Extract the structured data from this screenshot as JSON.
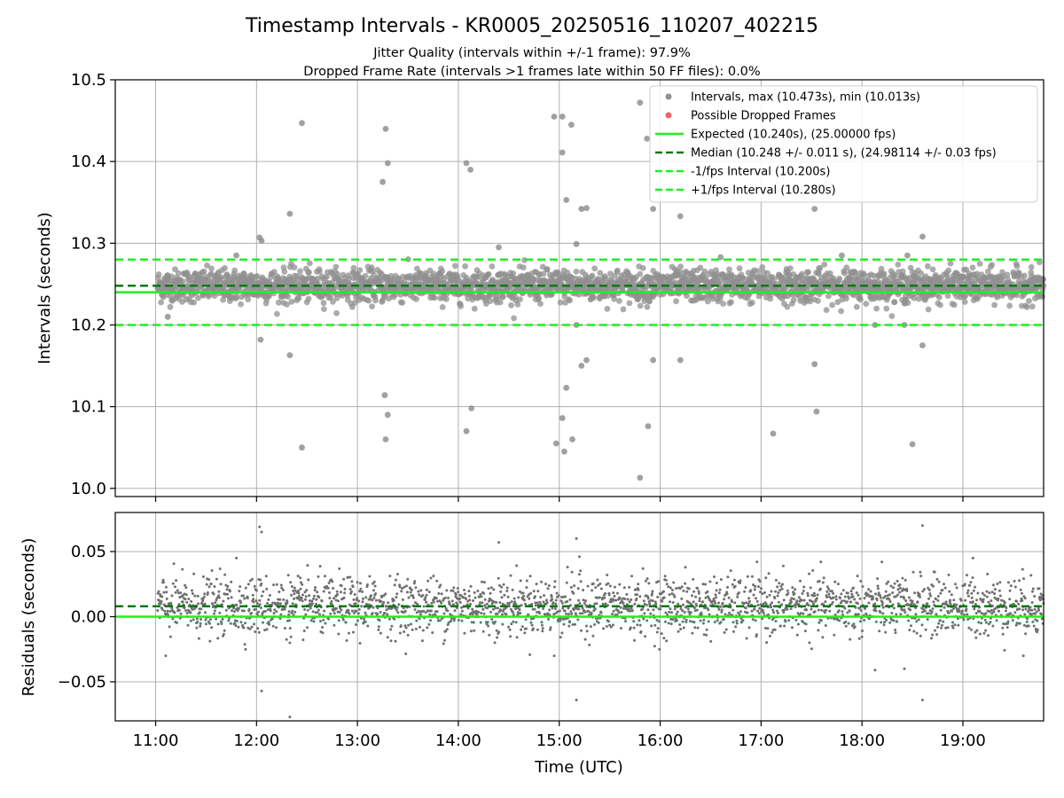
{
  "chart_data": [
    {
      "type": "scatter",
      "title": "Timestamp Intervals - KR0005_20250516_110207_402215",
      "subtitle_lines": [
        "Jitter Quality (intervals within +/-1 frame): 97.9%",
        "Dropped Frame Rate (intervals >1 frames late within 50 FF files): 0.0%"
      ],
      "ylabel": "Intervals (seconds)",
      "ylim": [
        9.99,
        10.5
      ],
      "yticks": [
        "10.0",
        "10.1",
        "10.2",
        "10.3",
        "10.4",
        "10.5"
      ],
      "ytick_values": [
        10.0,
        10.1,
        10.2,
        10.3,
        10.4,
        10.5
      ],
      "xlim_hours": [
        10.6,
        19.8
      ],
      "grid": true,
      "legend_position": "top-right",
      "series": [
        {
          "name": "Intervals, max (10.473s), min (10.013s)",
          "kind": "points",
          "color": "#909090",
          "band_center": 10.248,
          "band_spread": 0.011,
          "x_start_hour": 11.02,
          "x_end_hour": 19.8,
          "count": 2600,
          "outliers": [
            {
              "t": 12.03,
              "y": 10.307
            },
            {
              "t": 12.05,
              "y": 10.303
            },
            {
              "t": 12.04,
              "y": 10.182
            },
            {
              "t": 12.33,
              "y": 10.336
            },
            {
              "t": 12.33,
              "y": 10.163
            },
            {
              "t": 12.45,
              "y": 10.447
            },
            {
              "t": 12.45,
              "y": 10.05
            },
            {
              "t": 13.25,
              "y": 10.375
            },
            {
              "t": 13.28,
              "y": 10.44
            },
            {
              "t": 13.3,
              "y": 10.398
            },
            {
              "t": 13.27,
              "y": 10.114
            },
            {
              "t": 13.3,
              "y": 10.09
            },
            {
              "t": 13.28,
              "y": 10.06
            },
            {
              "t": 14.08,
              "y": 10.398
            },
            {
              "t": 14.12,
              "y": 10.39
            },
            {
              "t": 14.13,
              "y": 10.098
            },
            {
              "t": 14.08,
              "y": 10.07
            },
            {
              "t": 14.95,
              "y": 10.455
            },
            {
              "t": 15.03,
              "y": 10.455
            },
            {
              "t": 15.12,
              "y": 10.445
            },
            {
              "t": 15.03,
              "y": 10.411
            },
            {
              "t": 15.07,
              "y": 10.353
            },
            {
              "t": 15.22,
              "y": 10.342
            },
            {
              "t": 15.27,
              "y": 10.343
            },
            {
              "t": 15.17,
              "y": 10.299
            },
            {
              "t": 15.17,
              "y": 10.2
            },
            {
              "t": 15.22,
              "y": 10.15
            },
            {
              "t": 15.27,
              "y": 10.157
            },
            {
              "t": 15.07,
              "y": 10.123
            },
            {
              "t": 15.03,
              "y": 10.086
            },
            {
              "t": 14.97,
              "y": 10.055
            },
            {
              "t": 15.13,
              "y": 10.06
            },
            {
              "t": 15.05,
              "y": 10.045
            },
            {
              "t": 15.8,
              "y": 10.472
            },
            {
              "t": 15.87,
              "y": 10.428
            },
            {
              "t": 15.93,
              "y": 10.342
            },
            {
              "t": 16.2,
              "y": 10.333
            },
            {
              "t": 15.93,
              "y": 10.157
            },
            {
              "t": 16.2,
              "y": 10.157
            },
            {
              "t": 15.88,
              "y": 10.076
            },
            {
              "t": 15.8,
              "y": 10.013
            },
            {
              "t": 17.12,
              "y": 10.067
            },
            {
              "t": 17.53,
              "y": 10.342
            },
            {
              "t": 17.53,
              "y": 10.152
            },
            {
              "t": 17.55,
              "y": 10.094
            },
            {
              "t": 18.42,
              "y": 10.2
            },
            {
              "t": 18.5,
              "y": 10.054
            },
            {
              "t": 18.6,
              "y": 10.308
            },
            {
              "t": 18.6,
              "y": 10.175
            },
            {
              "t": 11.8,
              "y": 10.285
            },
            {
              "t": 11.12,
              "y": 10.21
            },
            {
              "t": 14.4,
              "y": 10.295
            },
            {
              "t": 16.6,
              "y": 10.283
            },
            {
              "t": 17.8,
              "y": 10.285
            },
            {
              "t": 18.13,
              "y": 10.2
            },
            {
              "t": 18.45,
              "y": 10.285
            }
          ]
        },
        {
          "name": "Possible Dropped Frames",
          "kind": "points",
          "color": "#ee6666",
          "count": 0
        },
        {
          "name": "Expected (10.240s), (25.00000 fps)",
          "kind": "hline",
          "y": 10.24,
          "color": "#22ee22",
          "style": "solid"
        },
        {
          "name": "Median (10.248 +/- 0.011 s), (24.98114 +/- 0.03 fps)",
          "kind": "hline",
          "y": 10.248,
          "color": "#117711",
          "style": "dashed"
        },
        {
          "name": "-1/fps Interval (10.200s)",
          "kind": "hline",
          "y": 10.2,
          "color": "#22ee22",
          "style": "dashed"
        },
        {
          "name": "+1/fps Interval (10.280s)",
          "kind": "hline",
          "y": 10.28,
          "color": "#22ee22",
          "style": "dashed"
        }
      ]
    },
    {
      "type": "scatter",
      "ylabel": "Residuals (seconds)",
      "xlabel": "Time (UTC)",
      "ylim": [
        -0.08,
        0.08
      ],
      "yticks": [
        "0.05",
        "0.00",
        "−0.05"
      ],
      "ytick_values": [
        0.05,
        0.0,
        -0.05
      ],
      "xticks": [
        "11:00",
        "12:00",
        "13:00",
        "14:00",
        "15:00",
        "16:00",
        "17:00",
        "18:00",
        "19:00"
      ],
      "xtick_hours": [
        11,
        12,
        13,
        14,
        15,
        16,
        17,
        18,
        19
      ],
      "xlim_hours": [
        10.6,
        19.8
      ],
      "grid": true,
      "series": [
        {
          "name": "Residuals",
          "kind": "points",
          "color": "#707070",
          "band_center": 0.008,
          "band_spread": 0.011,
          "count": 2400,
          "outliers": [
            {
              "t": 12.03,
              "y": 0.069
            },
            {
              "t": 12.05,
              "y": 0.065
            },
            {
              "t": 12.05,
              "y": -0.057
            },
            {
              "t": 12.33,
              "y": -0.077
            },
            {
              "t": 14.4,
              "y": 0.057
            },
            {
              "t": 15.17,
              "y": 0.06
            },
            {
              "t": 15.2,
              "y": 0.046
            },
            {
              "t": 15.17,
              "y": -0.064
            },
            {
              "t": 18.6,
              "y": 0.07
            },
            {
              "t": 18.6,
              "y": -0.064
            },
            {
              "t": 18.42,
              "y": -0.04
            },
            {
              "t": 18.13,
              "y": -0.041
            },
            {
              "t": 11.1,
              "y": -0.03
            },
            {
              "t": 11.8,
              "y": 0.045
            },
            {
              "t": 14.95,
              "y": -0.03
            },
            {
              "t": 19.1,
              "y": 0.045
            },
            {
              "t": 19.6,
              "y": -0.03
            }
          ]
        },
        {
          "name": "Zero",
          "kind": "hline",
          "y": 0.0,
          "color": "#22ee22",
          "style": "solid"
        },
        {
          "name": "Median offset",
          "kind": "hline",
          "y": 0.008,
          "color": "#117711",
          "style": "dashed"
        }
      ]
    }
  ]
}
